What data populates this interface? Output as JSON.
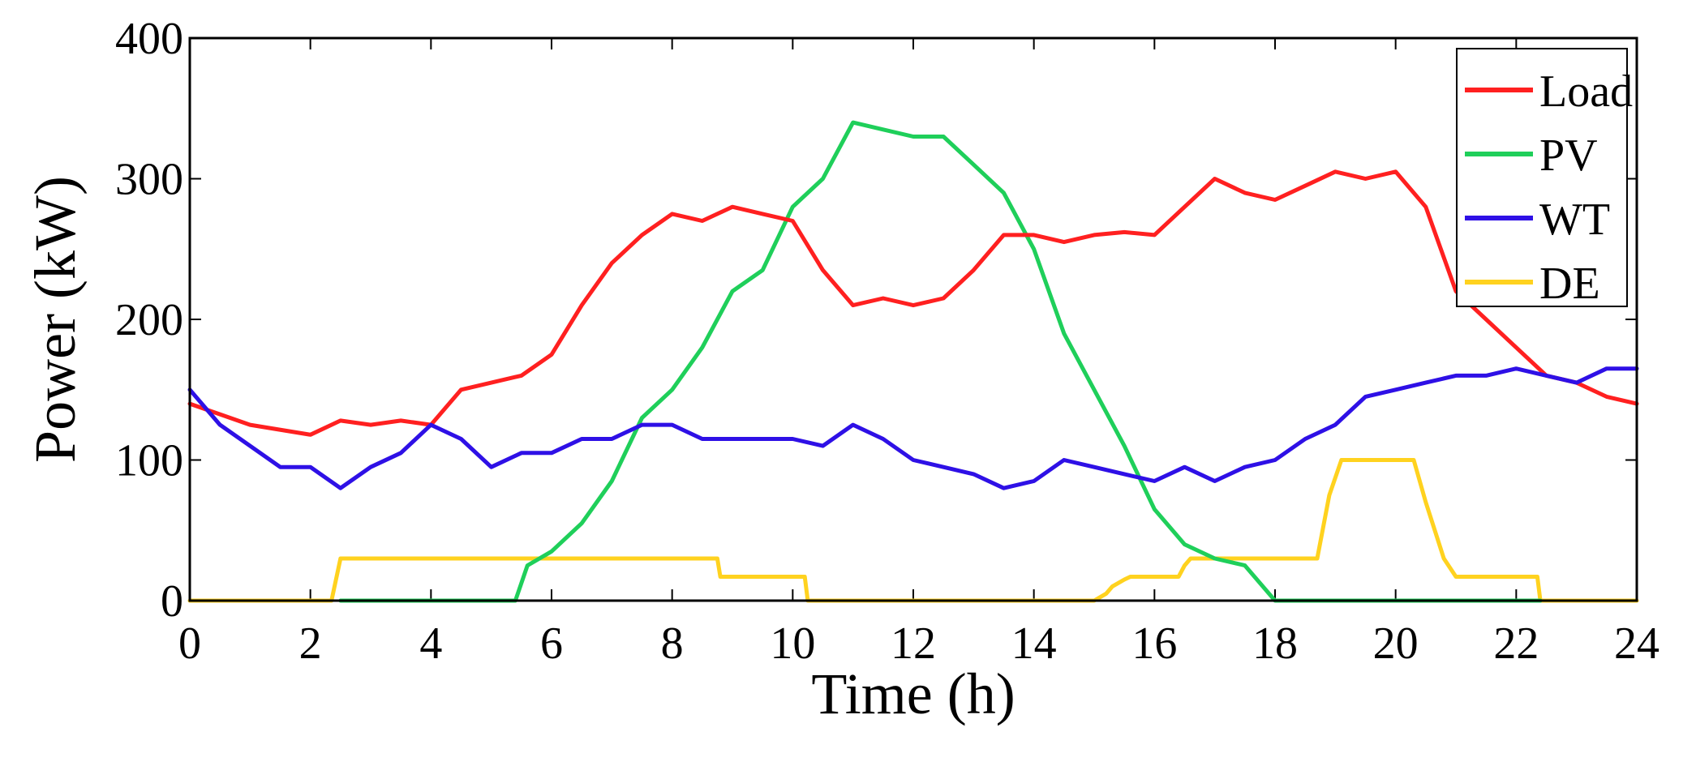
{
  "chart_data": {
    "type": "line",
    "title": "",
    "xlabel": "Time (h)",
    "ylabel": "Power (kW)",
    "xlim": [
      0,
      24
    ],
    "ylim": [
      0,
      400
    ],
    "xticks": [
      0,
      2,
      4,
      6,
      8,
      10,
      12,
      14,
      16,
      18,
      20,
      22,
      24
    ],
    "yticks": [
      0,
      100,
      200,
      300,
      400
    ],
    "grid": false,
    "legend_position": "top-right",
    "series": [
      {
        "name": "Load",
        "color": "#ff2020",
        "x": [
          0,
          1,
          2,
          2.5,
          3,
          3.5,
          4,
          4.5,
          5,
          5.5,
          6,
          6.5,
          7,
          7.5,
          8,
          8.5,
          9,
          9.5,
          10,
          10.5,
          11,
          11.5,
          12,
          12.5,
          13,
          13.5,
          14,
          14.5,
          15,
          15.5,
          16,
          16.5,
          17,
          17.5,
          18,
          18.5,
          19,
          19.5,
          20,
          20.5,
          21,
          21.5,
          22,
          22.5,
          23,
          23.5,
          24
        ],
        "values": [
          140,
          125,
          118,
          128,
          125,
          128,
          125,
          150,
          155,
          160,
          175,
          210,
          240,
          260,
          275,
          270,
          280,
          275,
          270,
          235,
          210,
          215,
          210,
          215,
          235,
          260,
          260,
          255,
          260,
          262,
          260,
          280,
          300,
          290,
          285,
          295,
          305,
          300,
          305,
          280,
          220,
          200,
          180,
          160,
          155,
          145,
          140
        ]
      },
      {
        "name": "PV",
        "color": "#1fcf5a",
        "x": [
          2.5,
          3,
          4,
          5,
          5.4,
          5.6,
          6,
          6.5,
          7,
          7.5,
          8,
          8.5,
          9,
          9.5,
          10,
          10.5,
          11,
          11.5,
          12,
          12.5,
          13,
          13.5,
          14,
          14.5,
          15,
          15.5,
          16,
          16.5,
          17,
          17.5,
          17.8,
          18,
          19,
          20,
          21,
          22,
          22.4
        ],
        "values": [
          0,
          0,
          0,
          0,
          0,
          25,
          35,
          55,
          85,
          130,
          150,
          180,
          220,
          235,
          280,
          300,
          340,
          335,
          330,
          330,
          310,
          290,
          250,
          190,
          150,
          110,
          65,
          40,
          30,
          25,
          10,
          0,
          0,
          0,
          0,
          0,
          0
        ]
      },
      {
        "name": "WT",
        "color": "#2e10e6",
        "x": [
          0,
          0.5,
          1,
          1.5,
          2,
          2.5,
          3,
          3.5,
          4,
          4.5,
          5,
          5.5,
          6,
          6.5,
          7,
          7.5,
          8,
          8.5,
          9,
          9.5,
          10,
          10.5,
          11,
          11.5,
          12,
          12.5,
          13,
          13.5,
          14,
          14.5,
          15,
          15.5,
          16,
          16.5,
          17,
          17.5,
          18,
          18.5,
          19,
          19.5,
          20,
          20.5,
          21,
          21.5,
          22,
          22.5,
          23,
          23.5,
          24
        ],
        "values": [
          150,
          125,
          110,
          95,
          95,
          80,
          95,
          105,
          125,
          115,
          95,
          105,
          105,
          115,
          115,
          125,
          125,
          115,
          115,
          115,
          115,
          110,
          125,
          115,
          100,
          95,
          90,
          80,
          85,
          100,
          95,
          90,
          85,
          95,
          85,
          95,
          100,
          115,
          125,
          145,
          150,
          155,
          160,
          160,
          165,
          160,
          155,
          165,
          165
        ]
      },
      {
        "name": "DE",
        "color": "#ffd21f",
        "x": [
          0,
          2.35,
          2.5,
          4,
          6,
          8.75,
          8.8,
          9,
          10.2,
          10.25,
          12,
          15,
          15.2,
          15.3,
          15.5,
          15.6,
          16.4,
          16.5,
          16.6,
          18,
          18.7,
          18.9,
          19.1,
          20,
          20.3,
          20.5,
          20.8,
          21,
          22,
          22.35,
          22.4,
          24
        ],
        "values": [
          0,
          0,
          30,
          30,
          30,
          30,
          17,
          17,
          17,
          0,
          0,
          0,
          5,
          10,
          15,
          17,
          17,
          25,
          30,
          30,
          30,
          75,
          100,
          100,
          100,
          70,
          30,
          17,
          17,
          17,
          0,
          0
        ]
      }
    ]
  }
}
